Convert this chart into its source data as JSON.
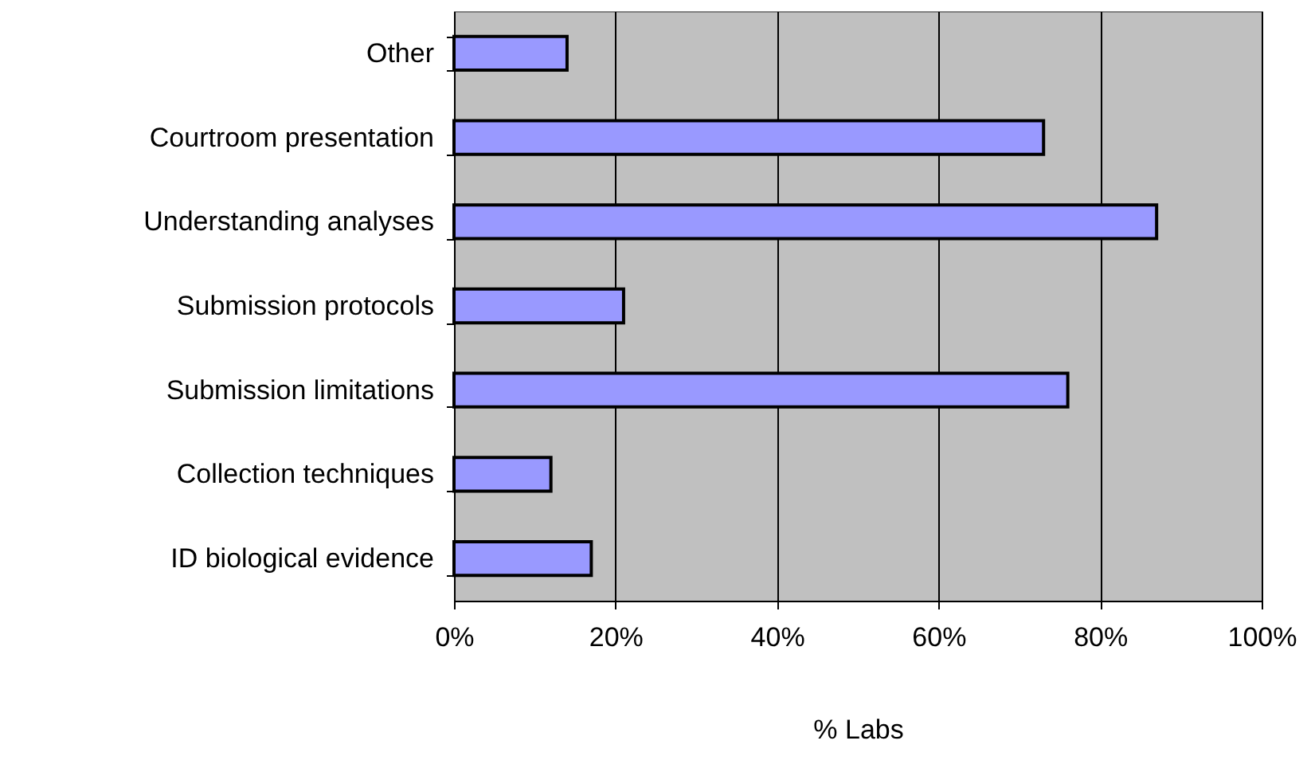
{
  "chart_data": {
    "type": "bar",
    "orientation": "horizontal",
    "xlabel": "% Labs",
    "categories": [
      "Other",
      "Courtroom presentation",
      "Understanding analyses",
      "Submission protocols",
      "Submission limitations",
      "Collection techniques",
      "ID biological evidence"
    ],
    "values": [
      14,
      73,
      87,
      21,
      76,
      12,
      17
    ],
    "color": "#9999ff",
    "xlim": [
      0,
      100
    ],
    "xticks": [
      {
        "value": 0,
        "label": "0%"
      },
      {
        "value": 20,
        "label": "20%"
      },
      {
        "value": 40,
        "label": "40%"
      },
      {
        "value": 60,
        "label": "60%"
      },
      {
        "value": 80,
        "label": "80%"
      },
      {
        "value": 100,
        "label": "100%"
      }
    ],
    "grid": "x"
  }
}
